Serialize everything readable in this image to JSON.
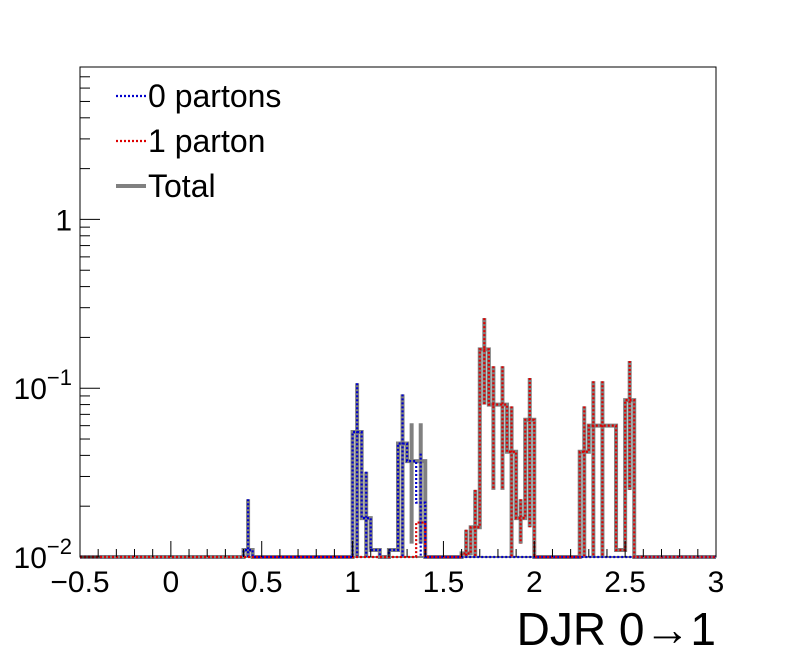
{
  "chart_data": {
    "type": "histogram",
    "xlabel": "DJR 0→1",
    "ylabel": "",
    "xlim": [
      -0.5,
      3.0
    ],
    "ylim": [
      0.01,
      8.0
    ],
    "y_scale": "log",
    "grid": false,
    "legend_position": "top-left",
    "x_ticks": [
      "−0.5",
      "0",
      "0.5",
      "1",
      "1.5",
      "2",
      "2.5",
      "3"
    ],
    "x_tick_values": [
      -0.5,
      0,
      0.5,
      1,
      1.5,
      2,
      2.5,
      3
    ],
    "y_ticks": [
      {
        "value": 1,
        "base": "1",
        "exp": ""
      },
      {
        "value": 0.1,
        "base": "10",
        "exp": "−1"
      },
      {
        "value": 0.01,
        "base": "10",
        "exp": "−2"
      }
    ],
    "bin_width": 0.05,
    "series": [
      {
        "name": "0 partons",
        "color": "#0000cc",
        "style": "dotted",
        "bins": [
          {
            "x": 0.425,
            "y": 0.011,
            "err": 0.011
          },
          {
            "x": 1.025,
            "y": 0.055,
            "err": 0.052
          },
          {
            "x": 1.075,
            "y": 0.017,
            "err": 0.015
          },
          {
            "x": 1.125,
            "y": 0.011,
            "err": 0.0
          },
          {
            "x": 1.225,
            "y": 0.011,
            "err": 0.0
          },
          {
            "x": 1.275,
            "y": 0.047,
            "err": 0.045
          },
          {
            "x": 1.325,
            "y": 0.037,
            "err": 0.0
          },
          {
            "x": 1.375,
            "y": 0.021,
            "err": 0.02
          }
        ]
      },
      {
        "name": "1 parton",
        "color": "#dd0000",
        "style": "dotted",
        "bins": [
          {
            "x": 1.375,
            "y": 0.016,
            "err": 0.0
          },
          {
            "x": 1.625,
            "y": 0.0105,
            "err": 0.004
          },
          {
            "x": 1.675,
            "y": 0.015,
            "err": 0.01
          },
          {
            "x": 1.725,
            "y": 0.17,
            "err": 0.09
          },
          {
            "x": 1.775,
            "y": 0.08,
            "err": 0.055
          },
          {
            "x": 1.825,
            "y": 0.08,
            "err": 0.055
          },
          {
            "x": 1.875,
            "y": 0.042,
            "err": 0.036
          },
          {
            "x": 1.925,
            "y": 0.017,
            "err": 0.005
          },
          {
            "x": 1.975,
            "y": 0.065,
            "err": 0.05
          },
          {
            "x": 2.275,
            "y": 0.042,
            "err": 0.036
          },
          {
            "x": 2.325,
            "y": 0.06,
            "err": 0.05
          },
          {
            "x": 2.375,
            "y": 0.06,
            "err": 0.05
          },
          {
            "x": 2.425,
            "y": 0.06,
            "err": 0.0
          },
          {
            "x": 2.475,
            "y": 0.011,
            "err": 0.0
          },
          {
            "x": 2.525,
            "y": 0.085,
            "err": 0.06
          }
        ]
      },
      {
        "name": "Total",
        "color": "#808080",
        "style": "solid",
        "bins": [
          {
            "x": 0.425,
            "y": 0.011,
            "err": 0.011
          },
          {
            "x": 1.025,
            "y": 0.055,
            "err": 0.052
          },
          {
            "x": 1.075,
            "y": 0.017,
            "err": 0.015
          },
          {
            "x": 1.125,
            "y": 0.011,
            "err": 0.0
          },
          {
            "x": 1.225,
            "y": 0.011,
            "err": 0.0
          },
          {
            "x": 1.275,
            "y": 0.047,
            "err": 0.045
          },
          {
            "x": 1.325,
            "y": 0.037,
            "err": 0.025
          },
          {
            "x": 1.375,
            "y": 0.037,
            "err": 0.025
          },
          {
            "x": 1.625,
            "y": 0.0105,
            "err": 0.004
          },
          {
            "x": 1.675,
            "y": 0.015,
            "err": 0.01
          },
          {
            "x": 1.725,
            "y": 0.17,
            "err": 0.09
          },
          {
            "x": 1.775,
            "y": 0.08,
            "err": 0.055
          },
          {
            "x": 1.825,
            "y": 0.08,
            "err": 0.055
          },
          {
            "x": 1.875,
            "y": 0.042,
            "err": 0.036
          },
          {
            "x": 1.925,
            "y": 0.017,
            "err": 0.005
          },
          {
            "x": 1.975,
            "y": 0.065,
            "err": 0.05
          },
          {
            "x": 2.275,
            "y": 0.042,
            "err": 0.036
          },
          {
            "x": 2.325,
            "y": 0.06,
            "err": 0.05
          },
          {
            "x": 2.375,
            "y": 0.06,
            "err": 0.05
          },
          {
            "x": 2.425,
            "y": 0.06,
            "err": 0.0
          },
          {
            "x": 2.475,
            "y": 0.011,
            "err": 0.0
          },
          {
            "x": 2.525,
            "y": 0.085,
            "err": 0.06
          }
        ]
      }
    ]
  }
}
